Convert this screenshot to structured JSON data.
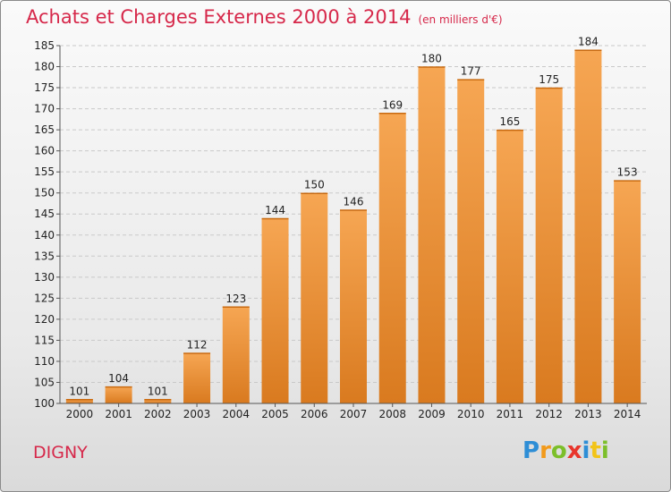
{
  "header": {
    "title": "Achats et Charges Externes 2000 à 2014",
    "subtitle": "(en milliers d'€)"
  },
  "place_name": "DIGNY",
  "logo": {
    "text": "Proxiti",
    "letters": [
      "P",
      "r",
      "o",
      "x",
      "i",
      "t",
      "i"
    ]
  },
  "colors": {
    "title": "#d6284a",
    "bar_light": "#f6a653",
    "bar_dark": "#d97a1f"
  },
  "chart_data": {
    "type": "bar",
    "title": "Achats et Charges Externes 2000 à 2014",
    "subtitle": "(en milliers d'€)",
    "xlabel": "",
    "ylabel": "",
    "categories": [
      "2000",
      "2001",
      "2002",
      "2003",
      "2004",
      "2005",
      "2006",
      "2007",
      "2008",
      "2009",
      "2010",
      "2011",
      "2012",
      "2013",
      "2014"
    ],
    "values": [
      101,
      104,
      101,
      112,
      123,
      144,
      150,
      146,
      169,
      180,
      177,
      165,
      175,
      184,
      153
    ],
    "ylim": [
      100,
      185
    ],
    "yticks": [
      100,
      105,
      110,
      115,
      120,
      125,
      130,
      135,
      140,
      145,
      150,
      155,
      160,
      165,
      170,
      175,
      180,
      185
    ],
    "grid": true,
    "data_labels": true
  }
}
